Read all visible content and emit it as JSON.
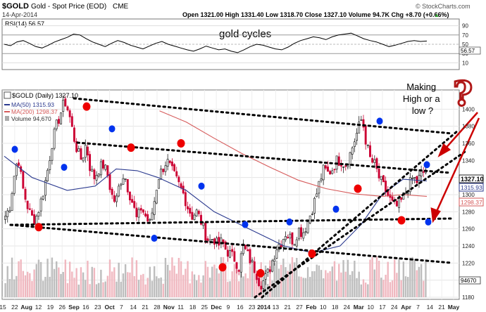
{
  "header": {
    "symbol": "$GOLD",
    "name": "Gold - Spot Price (EOD)",
    "exchange": "CME",
    "date": "14-Apr-2014",
    "watermark": "© StockCharts.com",
    "quote": "Open 1321.00  High 1331.40  Low 1318.70  Close 1327.10  Volume 94.7K  Chg +8.70 (+0.66%)",
    "quote_arrow": "▲"
  },
  "rsi_panel": {
    "label": "RSI(14) 56.57",
    "annotation": "gold cycles",
    "ticks": [
      "90",
      "70",
      "50",
      "30",
      "10"
    ],
    "badge": "56.57"
  },
  "price_panel": {
    "legend": {
      "title": "$GOLD (Daily) 1327.10",
      "ma50": "MA(50) 1315.93",
      "ma200": "MA(200) 1298.37",
      "volume": "Volume 94,670"
    },
    "annotation": [
      "Making",
      "High or a",
      "low ?"
    ],
    "question_mark": "?",
    "y_ticks": [
      "1400",
      "1380",
      "1360",
      "1340",
      "1320",
      "1300",
      "1280",
      "1260",
      "1240",
      "1220",
      "1200",
      "1180"
    ],
    "price_badges": [
      "1327.10",
      "1315.93",
      "1298.37"
    ],
    "volume_badge": "94670",
    "x_ticks": [
      "15",
      "22",
      "Aug",
      "12",
      "19",
      "26",
      "Sep",
      "16",
      "23",
      "Oct",
      "7",
      "14",
      "21",
      "28",
      "Nov",
      "11",
      "18",
      "25",
      "Dec",
      "9",
      "16",
      "23",
      "2014",
      "13",
      "21",
      "27",
      "Feb",
      "10",
      "18",
      "24",
      "Mar",
      "10",
      "17",
      "24",
      "Apr",
      "7",
      "14",
      "21",
      "May"
    ]
  },
  "colors": {
    "up_candle": "#222222",
    "down_candle": "#cc0033",
    "ma50": "#2b3a8f",
    "ma200": "#d65a5a",
    "rsi": "#000000",
    "cycle_low_marker": "#ee0000",
    "cycle_high_marker": "#0033ee",
    "trendline": "#000000",
    "arrow": "#cc0000"
  },
  "chart_data": {
    "type": "candlestick",
    "y_range": [
      1180,
      1420
    ],
    "rsi_range": [
      0,
      100
    ],
    "close_path": [
      [
        1275,
        1285,
        1320,
        1345,
        1310,
        1290,
        1275,
        1270,
        1285,
        1305
      ],
      [
        1330,
        1360,
        1380,
        1395,
        1410,
        1395,
        1370,
        1350,
        1340,
        1360
      ],
      [
        1330,
        1320,
        1330,
        1335,
        1325,
        1300,
        1290,
        1315,
        1325,
        1305
      ],
      [
        1290,
        1270,
        1285,
        1275,
        1265,
        1290,
        1320,
        1330,
        1340,
        1330
      ],
      [
        1320,
        1310,
        1300,
        1285,
        1275,
        1280,
        1270,
        1255,
        1245,
        1250
      ],
      [
        1240,
        1245,
        1235,
        1230,
        1225,
        1215,
        1240,
        1230,
        1220,
        1210
      ],
      [
        1195,
        1200,
        1210,
        1225,
        1240,
        1245,
        1255,
        1250,
        1245,
        1260
      ],
      [
        1255,
        1265,
        1280,
        1295,
        1315,
        1330,
        1325,
        1330,
        1340,
        1340
      ],
      [
        1335,
        1345,
        1360,
        1375,
        1390,
        1360,
        1340,
        1335,
        1320,
        1310
      ],
      [
        1300,
        1290,
        1285,
        1290,
        1300,
        1310,
        1320,
        1315,
        1325,
        1327
      ]
    ],
    "ma50": [
      [
        0,
        1345
      ],
      [
        40,
        1320
      ],
      [
        90,
        1305
      ],
      [
        130,
        1310
      ],
      [
        160,
        1330
      ],
      [
        190,
        1328
      ],
      [
        220,
        1320
      ],
      [
        260,
        1305
      ],
      [
        300,
        1280
      ],
      [
        350,
        1260
      ],
      [
        400,
        1240
      ],
      [
        440,
        1232
      ],
      [
        480,
        1240
      ],
      [
        510,
        1265
      ],
      [
        540,
        1300
      ],
      [
        570,
        1318
      ],
      [
        604,
        1316
      ]
    ],
    "ma200": [
      [
        222,
        1398
      ],
      [
        260,
        1385
      ],
      [
        300,
        1366
      ],
      [
        340,
        1348
      ],
      [
        380,
        1332
      ],
      [
        420,
        1317
      ],
      [
        460,
        1307
      ],
      [
        500,
        1301
      ],
      [
        540,
        1298
      ],
      [
        570,
        1300
      ],
      [
        604,
        1298
      ]
    ],
    "rsi_path": [
      50,
      47,
      55,
      58,
      52,
      45,
      42,
      48,
      55,
      60,
      65,
      72,
      70,
      62,
      55,
      50,
      45,
      52,
      58,
      54,
      48,
      44,
      40,
      46,
      52,
      56,
      50,
      46,
      42,
      38,
      35,
      40,
      46,
      42,
      38,
      40,
      35,
      32,
      38,
      45,
      50,
      48,
      44,
      40,
      38,
      44,
      52,
      58,
      62,
      66,
      64,
      60,
      66,
      70,
      72,
      74,
      68,
      62,
      58,
      55,
      50,
      45,
      48,
      52,
      56,
      58,
      56,
      57
    ],
    "cycle_lows": [
      [
        55,
        1262
      ],
      [
        123,
        1403
      ],
      [
        186,
        1355
      ],
      [
        257,
        1360
      ],
      [
        316,
        1215
      ],
      [
        370,
        1208
      ],
      [
        443,
        1231
      ],
      [
        508,
        1307
      ],
      [
        570,
        1270
      ]
    ],
    "cycle_highs": [
      [
        21,
        1353
      ],
      [
        91,
        1332
      ],
      [
        159,
        1377
      ],
      [
        219,
        1249
      ],
      [
        286,
        1310
      ],
      [
        348,
        1265
      ],
      [
        411,
        1268
      ],
      [
        477,
        1283
      ],
      [
        539,
        1386
      ],
      [
        606,
        1335
      ],
      [
        608,
        1268
      ]
    ]
  }
}
